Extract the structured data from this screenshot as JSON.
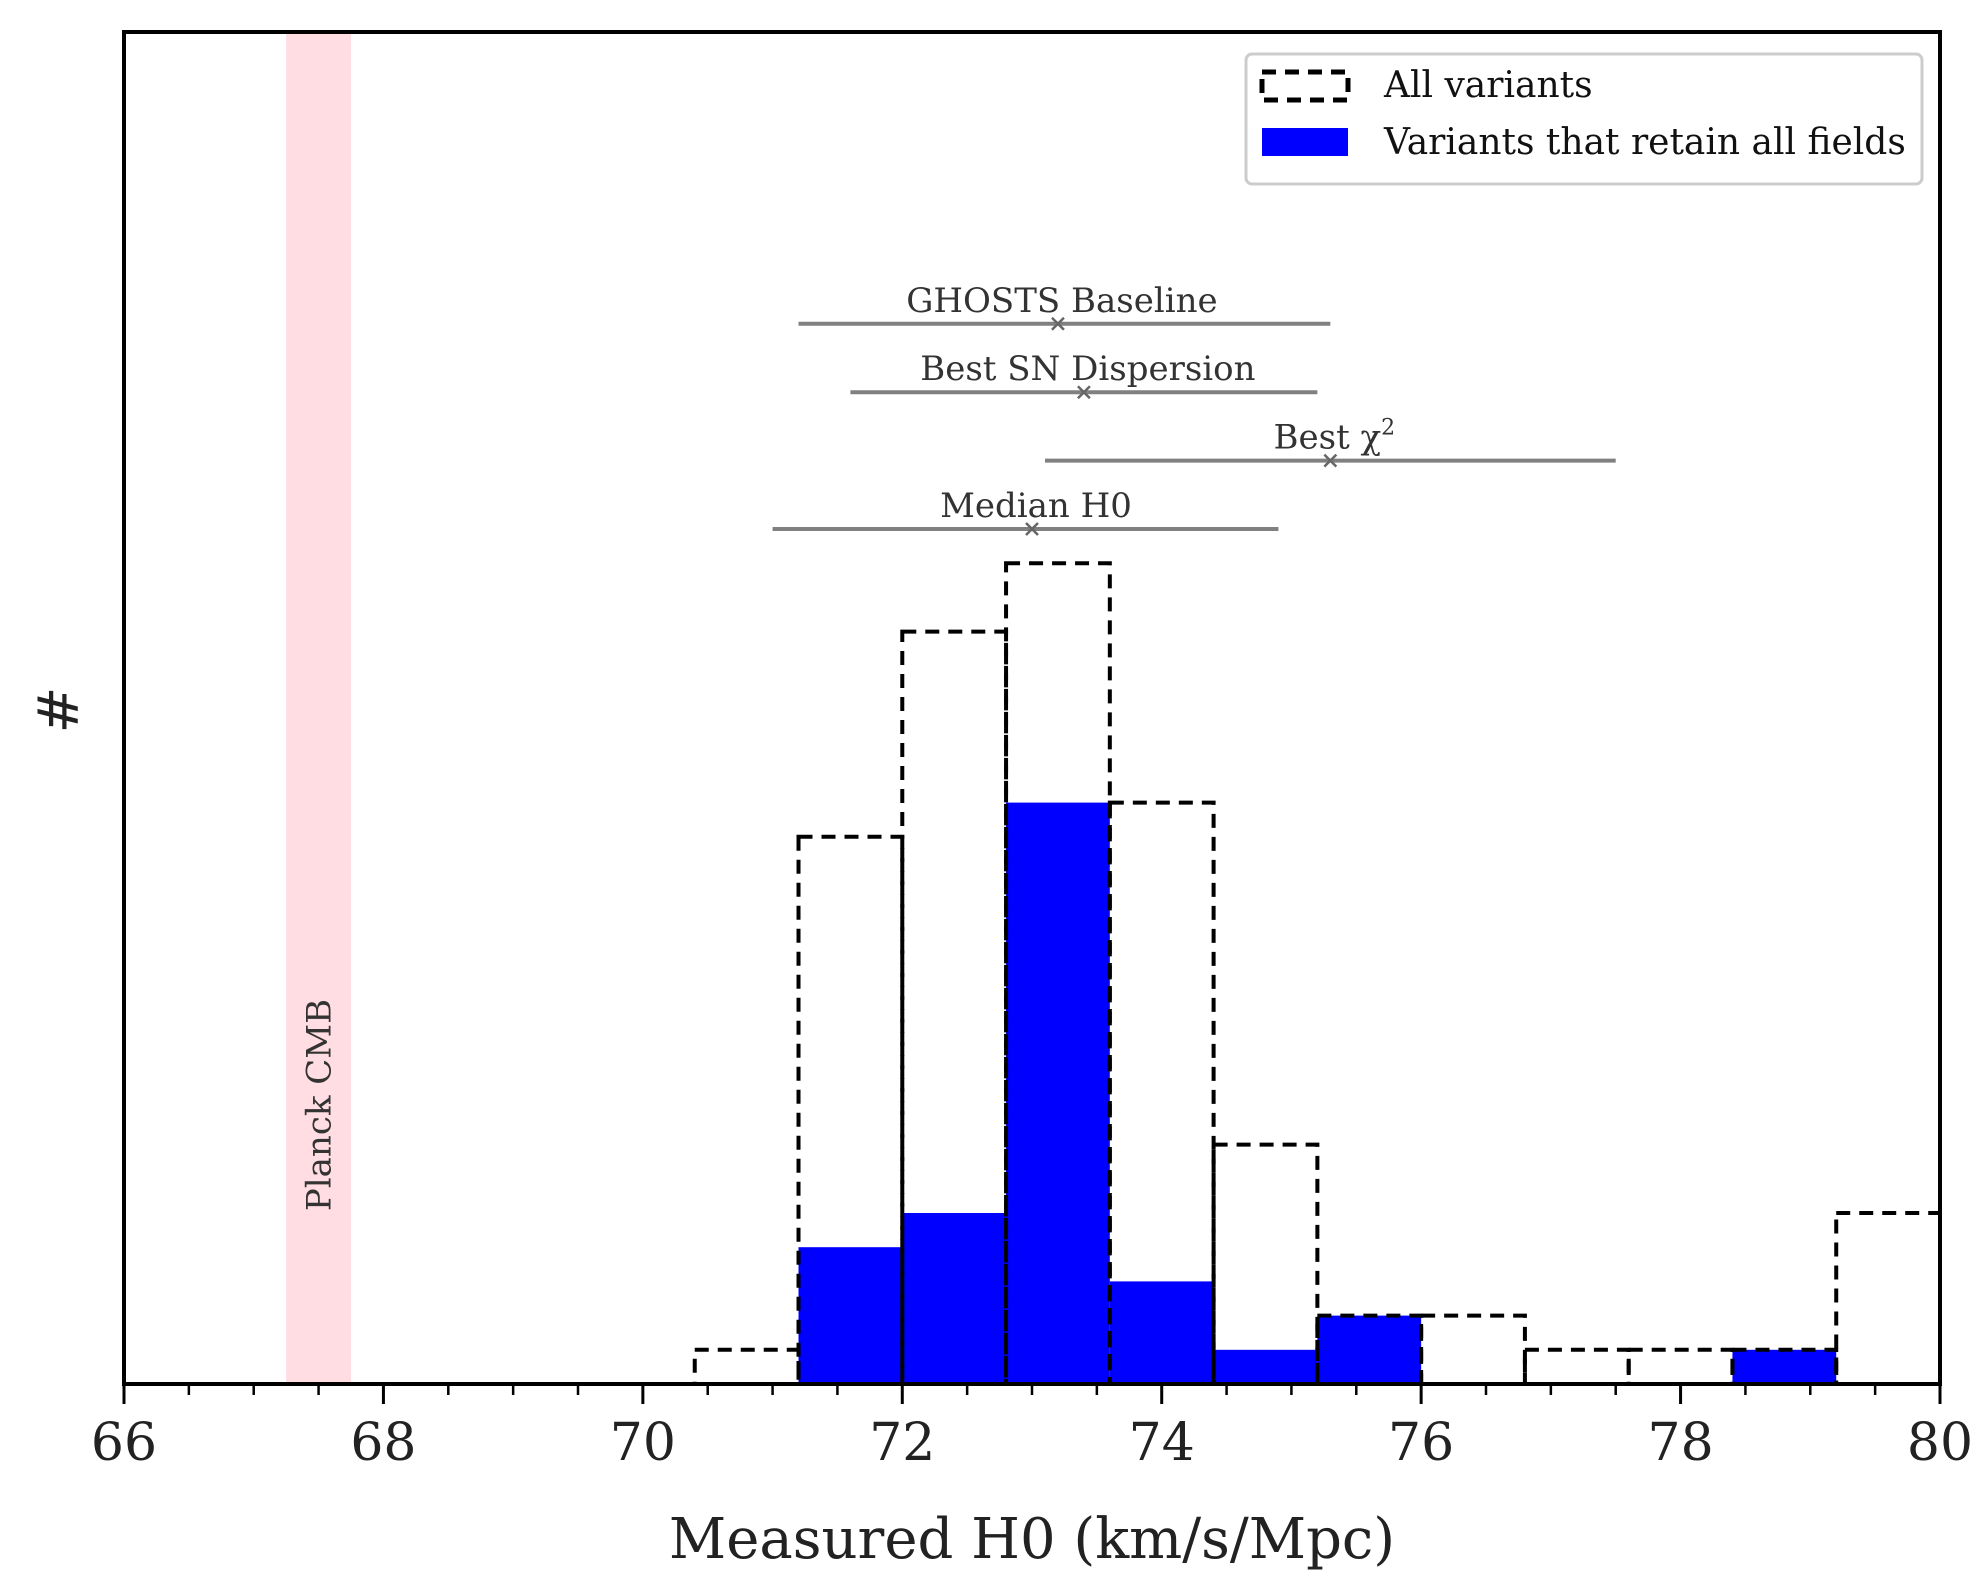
{
  "chart_data": {
    "type": "bar",
    "xlabel": "Measured H0 (km/s/Mpc)",
    "ylabel": "#",
    "xlim": [
      66,
      80
    ],
    "ylim": [
      0,
      24
    ],
    "bin_edges": [
      70.4,
      71.2,
      72.0,
      72.8,
      73.6,
      74.4,
      75.2,
      76.0,
      76.8,
      77.6,
      78.4,
      79.2,
      80.0
    ],
    "x_ticks": [
      "66",
      "68",
      "70",
      "72",
      "74",
      "76",
      "78",
      "80"
    ],
    "series": [
      {
        "name": "All variants",
        "style": "dashed-step",
        "values": [
          1,
          16,
          22,
          24,
          17,
          7,
          2,
          2,
          1,
          1,
          1,
          5
        ]
      },
      {
        "name": "Variants that retain all fields",
        "style": "filled",
        "color": "#0000ff",
        "values": [
          0,
          4,
          5,
          17,
          3,
          1,
          2,
          0,
          0,
          0,
          1,
          0
        ]
      }
    ],
    "band": {
      "label": "Planck CMB",
      "x_range": [
        67.25,
        67.75
      ],
      "color": "#ffdde3"
    },
    "annotations": [
      {
        "label": "GHOSTS Baseline",
        "center": 73.2,
        "range": [
          71.2,
          75.3
        ],
        "level": 31
      },
      {
        "label": "Best SN Dispersion",
        "center": 73.4,
        "range": [
          71.6,
          75.2
        ],
        "level": 29
      },
      {
        "label": "Best χ",
        "superscript": "2",
        "center": 75.3,
        "range": [
          73.1,
          77.5
        ],
        "level": 27
      },
      {
        "label": "Median H0",
        "center": 73.0,
        "range": [
          71.0,
          74.9
        ],
        "level": 25
      }
    ],
    "legend": {
      "position": "top-right"
    },
    "grid": false
  }
}
